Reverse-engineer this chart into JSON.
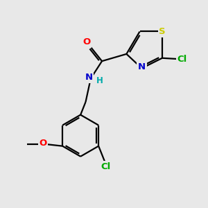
{
  "bg_color": "#e8e8e8",
  "atom_colors": {
    "C": "#000000",
    "N": "#0000cc",
    "O": "#ff0000",
    "S": "#cccc00",
    "Cl": "#00aa00",
    "H": "#00aaaa"
  },
  "bond_color": "#000000",
  "bond_width": 1.6,
  "figsize": [
    3.0,
    3.0
  ],
  "dpi": 100
}
